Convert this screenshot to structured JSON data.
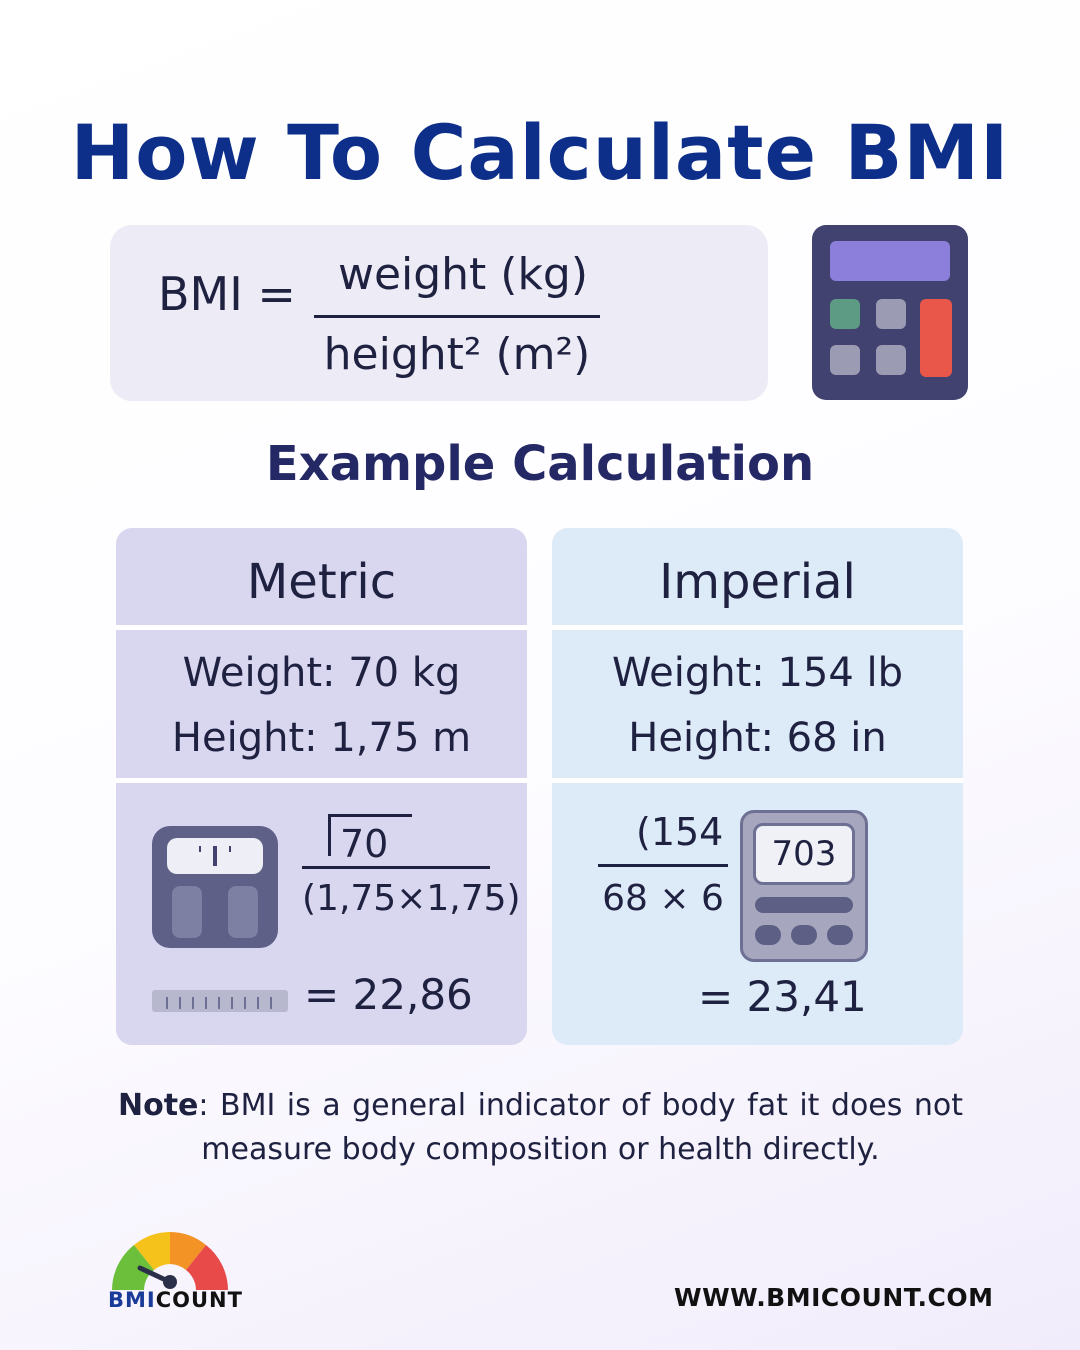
{
  "title": "How To Calculate BMI",
  "formula": {
    "lhs": "BMI =",
    "numerator": "weight (kg)",
    "denominator": "height² (m²)"
  },
  "subtitle": "Example Calculation",
  "metric": {
    "heading": "Metric",
    "weight": "Weight: 70 kg",
    "height": "Height: 1,75 m",
    "numerator": "70",
    "denominator": "(1,75×1,75)",
    "result": "= 22,86"
  },
  "imperial": {
    "heading": "Imperial",
    "weight": "Weight: 154 lb",
    "height": "Height: 68 in",
    "numerator": "(154",
    "denominator": "68 × 6",
    "multiplier": "703",
    "result": "= 23,41"
  },
  "note": {
    "label": "Note",
    "text": ": BMI is a general indicator of body fat it does not measure body composition or health directly."
  },
  "brand": {
    "logo_part1": "BMI",
    "logo_part2": "COUNT",
    "website": "WWW.BMICOUNT.COM"
  },
  "colors": {
    "title": "#0d2f8a",
    "gauge": [
      "#6cbf3a",
      "#f5c21b",
      "#f39325",
      "#e84a4a"
    ]
  },
  "icons": [
    "calculator-icon",
    "bathroom-scale-icon",
    "ruler-icon",
    "calculator-device-icon",
    "bmi-gauge-logo"
  ]
}
